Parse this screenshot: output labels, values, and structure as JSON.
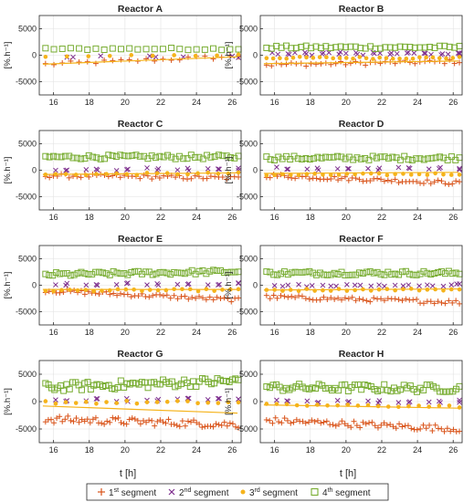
{
  "figure": {
    "x_axis_label": "t [h]",
    "y_axis_label": "[%.h⁻¹]"
  },
  "legend": {
    "items": [
      {
        "marker": "plus",
        "label_pre": "1",
        "label_sup": "st",
        "label_post": " segment",
        "color": "#d95319"
      },
      {
        "marker": "cross",
        "label_pre": "2",
        "label_sup": "nd",
        "label_post": " segment",
        "color": "#7e2f8e"
      },
      {
        "marker": "dot",
        "label_pre": "3",
        "label_sup": "rd",
        "label_post": " segment",
        "color": "#f5b31b"
      },
      {
        "marker": "square",
        "label_pre": "4",
        "label_sup": "th",
        "label_post": " segment",
        "color": "#77ac30"
      }
    ]
  },
  "chart_data": [
    {
      "type": "scatter",
      "title": "Reactor A",
      "xlim": [
        15.2,
        26.5
      ],
      "ylim": [
        -7500,
        7500
      ],
      "xticks": [
        16,
        18,
        20,
        22,
        24,
        26
      ],
      "yticks": [
        -5000,
        0,
        5000
      ],
      "grid": true,
      "series": [
        {
          "marker": "plus",
          "y_start": -1700,
          "y_end": -200,
          "spread": 400,
          "n": 24
        },
        {
          "marker": "cross",
          "y_start": -300,
          "y_end": -300,
          "spread": 200,
          "n": 8
        },
        {
          "marker": "dot",
          "y_start": -200,
          "y_end": 0,
          "spread": 150,
          "n": 10
        },
        {
          "marker": "square",
          "y_start": 1200,
          "y_end": 1200,
          "spread": 200,
          "n": 24
        }
      ],
      "trend": {
        "y_start": -1700,
        "y_end": -300
      }
    },
    {
      "type": "scatter",
      "title": "Reactor B",
      "xlim": [
        15.2,
        26.5
      ],
      "ylim": [
        -7500,
        7500
      ],
      "xticks": [
        16,
        18,
        20,
        22,
        24,
        26
      ],
      "yticks": [
        -5000,
        0,
        5000
      ],
      "grid": true,
      "series": [
        {
          "marker": "plus",
          "y_start": -1800,
          "y_end": -1200,
          "spread": 400,
          "n": 40
        },
        {
          "marker": "cross",
          "y_start": 300,
          "y_end": 300,
          "spread": 300,
          "n": 35
        },
        {
          "marker": "dot",
          "y_start": -500,
          "y_end": -500,
          "spread": 200,
          "n": 30
        },
        {
          "marker": "square",
          "y_start": 1500,
          "y_end": 1500,
          "spread": 300,
          "n": 40
        }
      ],
      "trend": {
        "y_start": -1600,
        "y_end": -1100
      }
    },
    {
      "type": "scatter",
      "title": "Reactor C",
      "xlim": [
        15.2,
        26.5
      ],
      "ylim": [
        -7500,
        7500
      ],
      "xticks": [
        16,
        18,
        20,
        22,
        24,
        26
      ],
      "yticks": [
        -5000,
        0,
        5000
      ],
      "grid": true,
      "series": [
        {
          "marker": "plus",
          "y_start": -1000,
          "y_end": -1500,
          "spread": 400,
          "n": 50
        },
        {
          "marker": "cross",
          "y_start": 200,
          "y_end": 200,
          "spread": 300,
          "n": 20
        },
        {
          "marker": "dot",
          "y_start": -800,
          "y_end": -600,
          "spread": 200,
          "n": 20
        },
        {
          "marker": "square",
          "y_start": 2500,
          "y_end": 2500,
          "spread": 400,
          "n": 50
        }
      ],
      "trend": {
        "y_start": -800,
        "y_end": -500
      }
    },
    {
      "type": "scatter",
      "title": "Reactor D",
      "xlim": [
        15.2,
        26.5
      ],
      "ylim": [
        -7500,
        7500
      ],
      "xticks": [
        16,
        18,
        20,
        22,
        24,
        26
      ],
      "yticks": [
        -5000,
        0,
        5000
      ],
      "grid": true,
      "series": [
        {
          "marker": "plus",
          "y_start": -1000,
          "y_end": -2400,
          "spread": 400,
          "n": 55
        },
        {
          "marker": "cross",
          "y_start": 300,
          "y_end": 300,
          "spread": 300,
          "n": 20
        },
        {
          "marker": "dot",
          "y_start": -900,
          "y_end": -700,
          "spread": 200,
          "n": 25
        },
        {
          "marker": "square",
          "y_start": 2300,
          "y_end": 2300,
          "spread": 400,
          "n": 50
        }
      ],
      "trend": {
        "y_start": -600,
        "y_end": -400
      }
    },
    {
      "type": "scatter",
      "title": "Reactor E",
      "xlim": [
        15.2,
        26.5
      ],
      "ylim": [
        -7500,
        7500
      ],
      "xticks": [
        16,
        18,
        20,
        22,
        24,
        26
      ],
      "yticks": [
        -5000,
        0,
        5000
      ],
      "grid": true,
      "series": [
        {
          "marker": "plus",
          "y_start": -1000,
          "y_end": -2800,
          "spread": 400,
          "n": 55
        },
        {
          "marker": "cross",
          "y_start": 200,
          "y_end": 200,
          "spread": 300,
          "n": 20
        },
        {
          "marker": "dot",
          "y_start": -1000,
          "y_end": -900,
          "spread": 200,
          "n": 25
        },
        {
          "marker": "square",
          "y_start": 2000,
          "y_end": 2600,
          "spread": 400,
          "n": 55
        }
      ],
      "trend": {
        "y_start": -800,
        "y_end": -800
      }
    },
    {
      "type": "scatter",
      "title": "Reactor F",
      "xlim": [
        15.2,
        26.5
      ],
      "ylim": [
        -7500,
        7500
      ],
      "xticks": [
        16,
        18,
        20,
        22,
        24,
        26
      ],
      "yticks": [
        -5000,
        0,
        5000
      ],
      "grid": true,
      "series": [
        {
          "marker": "plus",
          "y_start": -2200,
          "y_end": -3200,
          "spread": 400,
          "n": 55
        },
        {
          "marker": "cross",
          "y_start": 0,
          "y_end": 0,
          "spread": 300,
          "n": 25
        },
        {
          "marker": "dot",
          "y_start": -900,
          "y_end": -800,
          "spread": 200,
          "n": 25
        },
        {
          "marker": "square",
          "y_start": 2300,
          "y_end": 2300,
          "spread": 400,
          "n": 55
        }
      ],
      "trend": {
        "y_start": -900,
        "y_end": -700
      }
    },
    {
      "type": "scatter",
      "title": "Reactor G",
      "xlim": [
        15.2,
        26.5
      ],
      "ylim": [
        -7500,
        7500
      ],
      "xticks": [
        16,
        18,
        20,
        22,
        24,
        26
      ],
      "yticks": [
        -5000,
        0,
        5000
      ],
      "grid": true,
      "series": [
        {
          "marker": "plus",
          "y_start": -3200,
          "y_end": -4200,
          "spread": 700,
          "n": 70
        },
        {
          "marker": "cross",
          "y_start": 300,
          "y_end": 300,
          "spread": 300,
          "n": 20
        },
        {
          "marker": "dot",
          "y_start": -100,
          "y_end": -200,
          "spread": 300,
          "n": 20
        },
        {
          "marker": "square",
          "y_start": 2600,
          "y_end": 3800,
          "spread": 800,
          "n": 65
        }
      ],
      "trend": {
        "y_start": -800,
        "y_end": -2100
      }
    },
    {
      "type": "scatter",
      "title": "Reactor H",
      "xlim": [
        15.2,
        26.5
      ],
      "ylim": [
        -7500,
        7500
      ],
      "xticks": [
        16,
        18,
        20,
        22,
        24,
        26
      ],
      "yticks": [
        -5000,
        0,
        5000
      ],
      "grid": true,
      "series": [
        {
          "marker": "plus",
          "y_start": -3400,
          "y_end": -5000,
          "spread": 600,
          "n": 65
        },
        {
          "marker": "cross",
          "y_start": 0,
          "y_end": 0,
          "spread": 300,
          "n": 20
        },
        {
          "marker": "dot",
          "y_start": -600,
          "y_end": -900,
          "spread": 200,
          "n": 20
        },
        {
          "marker": "square",
          "y_start": 2600,
          "y_end": 2400,
          "spread": 700,
          "n": 60
        }
      ],
      "trend": {
        "y_start": -600,
        "y_end": -1200
      }
    }
  ]
}
